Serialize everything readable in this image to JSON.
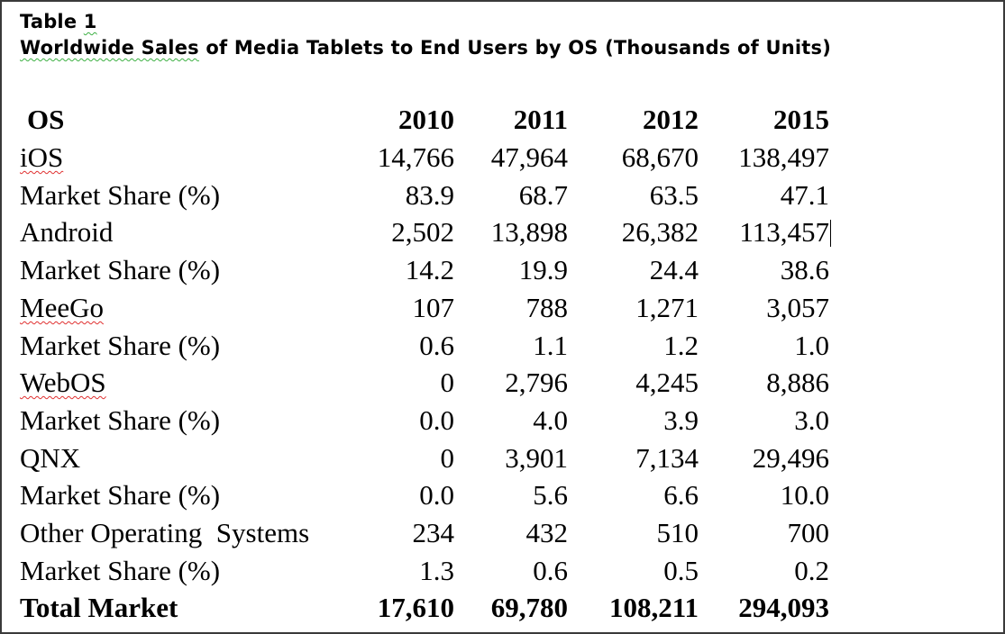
{
  "document": {
    "table_number": "Table 1",
    "title_part_underlined": "Worldwide Sales",
    "title_rest": " of Media Tablets to End Users by OS (Thousands of Units)",
    "table": {
      "header": {
        "label": "OS",
        "years": [
          "2010",
          "2011",
          "2012",
          "2015"
        ]
      },
      "rows": [
        {
          "label": "iOS",
          "spell_flag": true,
          "values": [
            "14,766",
            "47,964",
            "68,670",
            "138,497"
          ]
        },
        {
          "label": "Market Share (%)",
          "values": [
            "83.9",
            "68.7",
            "63.5",
            "47.1"
          ]
        },
        {
          "label": "Android",
          "values": [
            "2,502",
            "13,898",
            "26,382",
            "113,457"
          ]
        },
        {
          "label": "Market Share (%)",
          "values": [
            "14.2",
            "19.9",
            "24.4",
            "38.6"
          ]
        },
        {
          "label": "MeeGo",
          "spell_flag": true,
          "values": [
            "107",
            "788",
            "1,271",
            "3,057"
          ]
        },
        {
          "label": "Market Share (%)",
          "values": [
            "0.6",
            "1.1",
            "1.2",
            "1.0"
          ]
        },
        {
          "label": "WebOS",
          "spell_flag": true,
          "values": [
            "0",
            "2,796",
            "4,245",
            "8,886"
          ]
        },
        {
          "label": "Market Share (%)",
          "values": [
            "0.0",
            "4.0",
            "3.9",
            "3.0"
          ]
        },
        {
          "label": "QNX",
          "values": [
            "0",
            "3,901",
            "7,134",
            "29,496"
          ]
        },
        {
          "label": "Market Share (%)",
          "values": [
            "0.0",
            "5.6",
            "6.6",
            "10.0"
          ]
        },
        {
          "label": "Other Operating  Systems",
          "values": [
            "234",
            "432",
            "510",
            "700"
          ]
        },
        {
          "label": "Market Share (%)",
          "values": [
            "1.3",
            "0.6",
            "0.5",
            "0.2"
          ]
        }
      ],
      "total": {
        "label": "Total Market",
        "values": [
          "17,610",
          "69,780",
          "108,211",
          "294,093"
        ]
      }
    },
    "colors": {
      "text": "#000000",
      "border": "#3a3a3a",
      "grammar_squiggle": "#3cb043",
      "spelling_squiggle": "#e03030"
    }
  }
}
